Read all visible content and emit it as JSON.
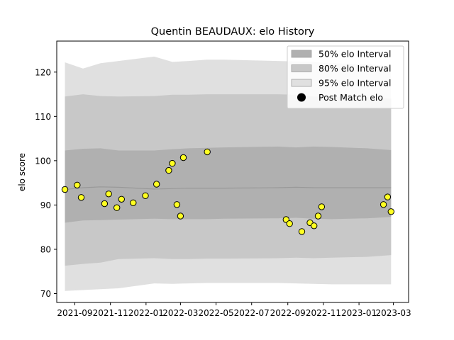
{
  "chart_data": {
    "type": "line",
    "title": "Quentin BEAUDAUX: elo History",
    "xlabel": "",
    "ylabel": "elo score",
    "xlim": [
      "2021-08-01",
      "2023-03-27"
    ],
    "ylim": [
      68,
      127
    ],
    "x_ticks": [
      "2021-09",
      "2021-11",
      "2022-01",
      "2022-03",
      "2022-05",
      "2022-07",
      "2022-09",
      "2022-11",
      "2023-01",
      "2023-03"
    ],
    "y_ticks": [
      70,
      80,
      90,
      100,
      110,
      120
    ],
    "grid": false,
    "legend_position": "top-right",
    "legend": [
      {
        "label": "50% elo Interval",
        "kind": "band",
        "color": "#b0b0b0"
      },
      {
        "label": "80% elo Interval",
        "kind": "band",
        "color": "#c8c8c8"
      },
      {
        "label": "95% elo Interval",
        "kind": "band",
        "color": "#e0e0e0"
      },
      {
        "label": "Post Match elo",
        "kind": "marker",
        "color": "#000000"
      }
    ],
    "colors": {
      "band50": "#b0b0b0",
      "band80": "#c8c8c8",
      "band95": "#e0e0e0",
      "marker_fill": "#ffff22",
      "marker_edge": "#000000",
      "median_line": "#999999"
    },
    "bands": {
      "dates": [
        "2021-08-15",
        "2021-09-15",
        "2021-10-15",
        "2021-11-15",
        "2022-01-15",
        "2022-02-15",
        "2022-03-15",
        "2022-04-15",
        "2022-05-15",
        "2022-08-15",
        "2022-09-15",
        "2022-10-15",
        "2022-11-15",
        "2023-01-15",
        "2023-02-25"
      ],
      "median": [
        93.5,
        93.9,
        94.1,
        94.0,
        93.6,
        93.7,
        93.8,
        93.8,
        93.8,
        93.9,
        94.0,
        93.9,
        93.9,
        93.9,
        93.9
      ],
      "p50_low": [
        86.0,
        86.5,
        86.6,
        86.7,
        86.9,
        86.8,
        86.8,
        86.8,
        86.9,
        87.0,
        87.1,
        86.9,
        86.8,
        87.0,
        87.3
      ],
      "p50_high": [
        102.3,
        102.7,
        102.8,
        102.3,
        102.3,
        102.6,
        102.8,
        102.9,
        103.0,
        103.2,
        103.0,
        103.2,
        103.1,
        102.8,
        102.4
      ],
      "p80_low": [
        76.3,
        76.7,
        77.0,
        77.8,
        78.0,
        77.8,
        77.8,
        77.9,
        77.9,
        78.0,
        78.1,
        78.0,
        78.1,
        78.3,
        78.7
      ],
      "p80_high": [
        114.5,
        115.0,
        114.6,
        114.5,
        114.6,
        114.9,
        114.9,
        115.0,
        115.0,
        115.0,
        114.9,
        114.5,
        114.5,
        114.3,
        114.0
      ],
      "p95_low": [
        70.6,
        70.8,
        71.0,
        71.2,
        72.3,
        72.2,
        72.3,
        72.4,
        72.4,
        72.4,
        72.3,
        72.2,
        72.1,
        72.1,
        72.1
      ],
      "p95_high": [
        122.2,
        120.8,
        122.0,
        122.5,
        123.5,
        122.3,
        122.5,
        122.8,
        122.8,
        122.5,
        122.4,
        122.3,
        122.0,
        121.8,
        121.3
      ]
    },
    "series": [
      {
        "name": "Post Match elo",
        "points": [
          {
            "x": "2021-08-15",
            "y": 93.5
          },
          {
            "x": "2021-09-05",
            "y": 94.5
          },
          {
            "x": "2021-09-12",
            "y": 91.7
          },
          {
            "x": "2021-10-22",
            "y": 90.3
          },
          {
            "x": "2021-10-29",
            "y": 92.5
          },
          {
            "x": "2021-11-12",
            "y": 89.4
          },
          {
            "x": "2021-11-20",
            "y": 91.3
          },
          {
            "x": "2021-12-10",
            "y": 90.5
          },
          {
            "x": "2021-12-31",
            "y": 92.1
          },
          {
            "x": "2022-01-19",
            "y": 94.7
          },
          {
            "x": "2022-02-09",
            "y": 97.8
          },
          {
            "x": "2022-02-15",
            "y": 99.4
          },
          {
            "x": "2022-02-23",
            "y": 90.1
          },
          {
            "x": "2022-03-01",
            "y": 87.5
          },
          {
            "x": "2022-03-06",
            "y": 100.7
          },
          {
            "x": "2022-04-16",
            "y": 102.0
          },
          {
            "x": "2022-08-29",
            "y": 86.7
          },
          {
            "x": "2022-09-04",
            "y": 85.8
          },
          {
            "x": "2022-09-25",
            "y": 84.0
          },
          {
            "x": "2022-10-09",
            "y": 86.0
          },
          {
            "x": "2022-10-16",
            "y": 85.3
          },
          {
            "x": "2022-10-23",
            "y": 87.5
          },
          {
            "x": "2022-10-29",
            "y": 89.6
          },
          {
            "x": "2023-02-12",
            "y": 90.1
          },
          {
            "x": "2023-02-19",
            "y": 91.8
          },
          {
            "x": "2023-02-25",
            "y": 88.5
          }
        ]
      }
    ]
  }
}
